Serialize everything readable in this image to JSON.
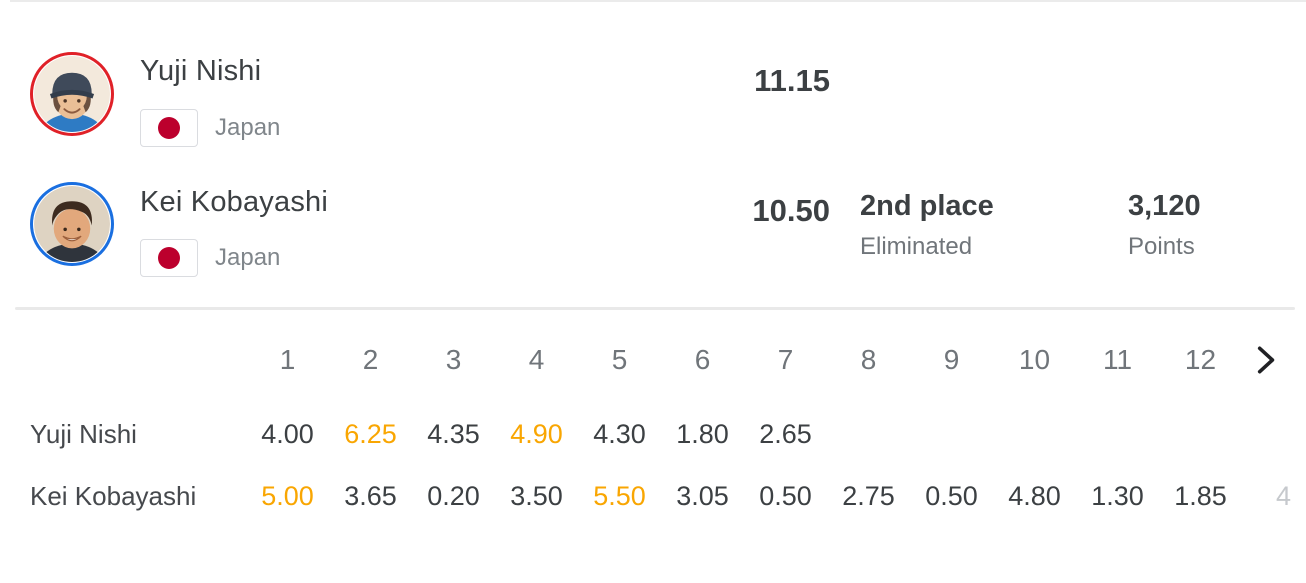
{
  "athletes": [
    {
      "name": "Yuji Nishi",
      "country": "Japan",
      "score": "11.15",
      "ring_color": "#e02128",
      "avatar": "man-in-dark-cap-blue-shirt"
    },
    {
      "name": "Kei Kobayashi",
      "country": "Japan",
      "score": "10.50",
      "place": "2nd place",
      "status": "Eliminated",
      "points": "3,120",
      "points_label": "Points",
      "ring_color": "#1a6fe0",
      "avatar": "man-with-dark-hair-dark-jacket"
    }
  ],
  "flag": {
    "name": "japan-flag",
    "red": "#bc002d"
  },
  "table": {
    "column_headers": [
      "1",
      "2",
      "3",
      "4",
      "5",
      "6",
      "7",
      "8",
      "9",
      "10",
      "11",
      "12"
    ],
    "rows": [
      {
        "label": "Yuji Nishi",
        "values": [
          {
            "v": "4.00",
            "highlight": false
          },
          {
            "v": "6.25",
            "highlight": true
          },
          {
            "v": "4.35",
            "highlight": false
          },
          {
            "v": "4.90",
            "highlight": true
          },
          {
            "v": "4.30",
            "highlight": false
          },
          {
            "v": "1.80",
            "highlight": false
          },
          {
            "v": "2.65",
            "highlight": false
          }
        ],
        "overflow": ""
      },
      {
        "label": "Kei Kobayashi",
        "values": [
          {
            "v": "5.00",
            "highlight": true
          },
          {
            "v": "3.65",
            "highlight": false
          },
          {
            "v": "0.20",
            "highlight": false
          },
          {
            "v": "3.50",
            "highlight": false
          },
          {
            "v": "5.50",
            "highlight": true
          },
          {
            "v": "3.05",
            "highlight": false
          },
          {
            "v": "0.50",
            "highlight": false
          },
          {
            "v": "2.75",
            "highlight": false
          },
          {
            "v": "0.50",
            "highlight": false
          },
          {
            "v": "4.80",
            "highlight": false
          },
          {
            "v": "1.30",
            "highlight": false
          },
          {
            "v": "1.85",
            "highlight": false
          }
        ],
        "overflow": "4"
      }
    ],
    "next_icon": "chevron-right"
  },
  "colors": {
    "highlight": "#F9A602",
    "text_dark": "#3c4043",
    "text_gray": "#70757a",
    "divider": "#e9e9e9",
    "chevron": "#202124"
  }
}
